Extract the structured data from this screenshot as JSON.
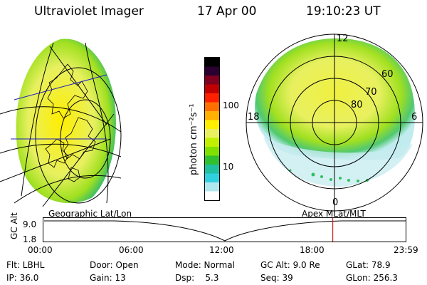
{
  "header": {
    "title": "Ultraviolet Imager",
    "date": "17 Apr 00",
    "time": "19:10:23 UT"
  },
  "colorbar": {
    "unit_label": "photon cm⁻²s⁻¹",
    "ticks": [
      "100",
      "10"
    ],
    "colors": [
      "#000000",
      "#2a0030",
      "#800020",
      "#c00000",
      "#ff2000",
      "#ff7000",
      "#ffb000",
      "#ffee00",
      "#e8f060",
      "#c0f000",
      "#80e000",
      "#30c030",
      "#20c0a0",
      "#30d0e0",
      "#b0e8f0",
      "#ffffff"
    ]
  },
  "left_map": {
    "caption": "Geographic Lat/Lon"
  },
  "right_map": {
    "caption": "Apex MLat/MLT",
    "mlt_labels": [
      "12",
      "18",
      "6",
      "0"
    ],
    "lat_labels": [
      "60",
      "70",
      "80"
    ]
  },
  "timeline": {
    "axis_label": "GC Alt",
    "y_ticks": [
      "9.0",
      "1.8"
    ],
    "x_ticks": [
      "00:00",
      "06:00",
      "12:00",
      "18:00",
      "23:59"
    ],
    "current_time_fraction": 0.7988,
    "marker_color": "#d02020"
  },
  "info": {
    "flt": "Flt: LBHL",
    "door": "Door: Open",
    "mode": "Mode: Normal",
    "gc_alt": "GC Alt: 9.0 Re",
    "glat": "GLat: 78.9",
    "ip": "IP: 36.0",
    "gain": "Gain: 13",
    "dsp": "Dsp:    5.3",
    "seq": "Seq: 39",
    "glon": "GLon: 256.3"
  }
}
